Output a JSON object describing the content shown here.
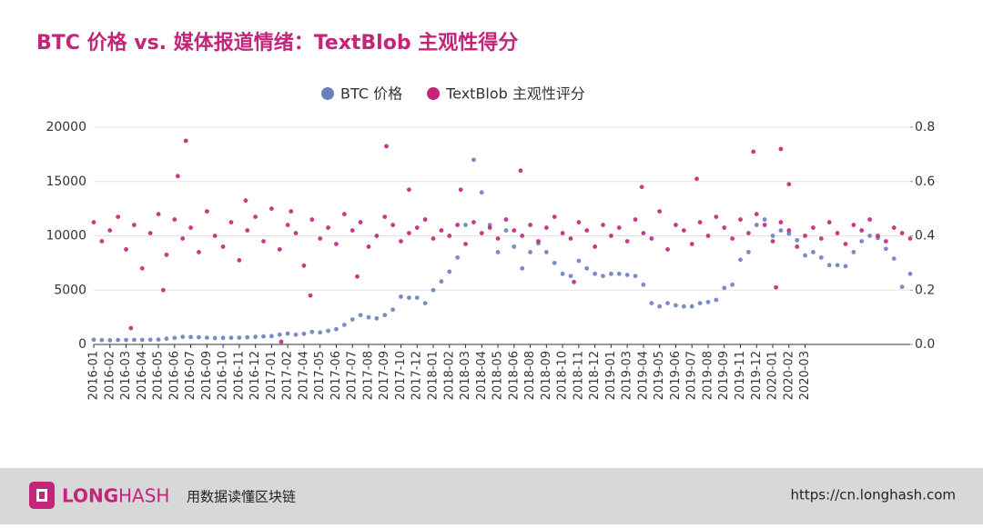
{
  "chart_data": {
    "type": "scatter",
    "title": "BTC 价格 vs. 媒体报道情绪：TextBlob 主观性得分",
    "xlim": [
      0,
      50.5
    ],
    "xticks": [
      {
        "value": 0,
        "label": "2016-01"
      },
      {
        "value": 1,
        "label": "2016-02"
      },
      {
        "value": 2,
        "label": "2016-03"
      },
      {
        "value": 3,
        "label": "2016-04"
      },
      {
        "value": 4,
        "label": "2016-05"
      },
      {
        "value": 5,
        "label": "2016-06"
      },
      {
        "value": 6,
        "label": "2016-07"
      },
      {
        "value": 7,
        "label": "2016-09"
      },
      {
        "value": 8,
        "label": "2016-10"
      },
      {
        "value": 9,
        "label": "2016-11"
      },
      {
        "value": 10,
        "label": "2016-12"
      },
      {
        "value": 11,
        "label": "2017-01"
      },
      {
        "value": 12,
        "label": "2017-02"
      },
      {
        "value": 13,
        "label": "2017-04"
      },
      {
        "value": 14,
        "label": "2017-05"
      },
      {
        "value": 15,
        "label": "2017-06"
      },
      {
        "value": 16,
        "label": "2017-07"
      },
      {
        "value": 17,
        "label": "2017-08"
      },
      {
        "value": 18,
        "label": "2017-09"
      },
      {
        "value": 19,
        "label": "2017-10"
      },
      {
        "value": 20,
        "label": "2017-12"
      },
      {
        "value": 21,
        "label": "2018-01"
      },
      {
        "value": 22,
        "label": "2018-02"
      },
      {
        "value": 23,
        "label": "2018-03"
      },
      {
        "value": 24,
        "label": "2018-04"
      },
      {
        "value": 25,
        "label": "2018-05"
      },
      {
        "value": 26,
        "label": "2018-06"
      },
      {
        "value": 27,
        "label": "2018-08"
      },
      {
        "value": 28,
        "label": "2018-09"
      },
      {
        "value": 29,
        "label": "2018-10"
      },
      {
        "value": 30,
        "label": "2018-11"
      },
      {
        "value": 31,
        "label": "2018-12"
      },
      {
        "value": 32,
        "label": "2019-01"
      },
      {
        "value": 33,
        "label": "2019-03"
      },
      {
        "value": 34,
        "label": "2019-04"
      },
      {
        "value": 35,
        "label": "2019-05"
      },
      {
        "value": 36,
        "label": "2019-06"
      },
      {
        "value": 37,
        "label": "2019-07"
      },
      {
        "value": 38,
        "label": "2019-08"
      },
      {
        "value": 39,
        "label": "2019-09"
      },
      {
        "value": 40,
        "label": "2019-11"
      },
      {
        "value": 41,
        "label": "2019-12"
      },
      {
        "value": 42,
        "label": "2020-01"
      },
      {
        "value": 43,
        "label": "2020-02"
      },
      {
        "value": 44,
        "label": "2020-03"
      }
    ],
    "ylim": [
      0,
      20000
    ],
    "yticks": [
      0,
      5000,
      10000,
      15000,
      20000
    ],
    "y2lim": [
      0,
      0.8
    ],
    "y2ticks": [
      {
        "value": 0,
        "label": "0.0"
      },
      0.2,
      0.4,
      0.6,
      0.8
    ],
    "series": [
      {
        "name": "BTC 价格",
        "color": "#6b7fbf",
        "x": [
          0,
          0.5,
          1,
          1.5,
          2,
          2.5,
          3,
          3.5,
          4,
          4.5,
          5,
          5.5,
          6,
          6.5,
          7,
          7.5,
          8,
          8.5,
          9,
          9.5,
          10,
          10.5,
          11,
          11.5,
          12,
          12.5,
          13,
          13.5,
          14,
          14.5,
          15,
          15.5,
          16,
          16.5,
          17,
          17.5,
          18,
          18.5,
          19,
          19.5,
          20,
          20.5,
          21,
          21.5,
          22,
          22.5,
          23,
          23.5,
          24,
          24.5,
          25,
          25.5,
          26,
          26.5,
          27,
          27.5,
          28,
          28.5,
          29,
          29.5,
          30,
          30.5,
          31,
          31.5,
          32,
          32.5,
          33,
          33.5,
          34,
          34.5,
          35,
          35.5,
          36,
          36.5,
          37,
          37.5,
          38,
          38.5,
          39,
          39.5,
          40,
          40.5,
          41,
          41.5,
          42,
          42.5,
          43,
          43.5,
          44,
          44.5,
          45,
          45.5,
          46,
          46.5,
          47,
          47.5,
          48,
          48.5,
          49,
          49.5,
          50,
          50.5
        ],
        "values": [
          430,
          400,
          380,
          410,
          415,
          420,
          420,
          430,
          450,
          530,
          600,
          700,
          680,
          660,
          620,
          580,
          600,
          610,
          620,
          650,
          700,
          740,
          760,
          900,
          1000,
          900,
          980,
          1150,
          1100,
          1250,
          1400,
          1800,
          2300,
          2700,
          2500,
          2400,
          2700,
          3200,
          4400,
          4300,
          4300,
          3800,
          5000,
          5800,
          6700,
          8000,
          11000,
          17000,
          14000,
          11000,
          8500,
          10500,
          9000,
          7000,
          8500,
          9300,
          8500,
          7500,
          6500,
          6300,
          7700,
          7000,
          6500,
          6300,
          6500,
          6500,
          6400,
          6300,
          5500,
          3800,
          3500,
          3800,
          3600,
          3500,
          3500,
          3800,
          3900,
          4100,
          5200,
          5500,
          7800,
          8500,
          11000,
          11500,
          10000,
          10500,
          10200,
          9600,
          8200,
          8500,
          8000,
          7300,
          7300,
          7200,
          8500,
          9500,
          10000,
          9800,
          8800,
          7900,
          5300,
          6500
        ]
      },
      {
        "name": "TextBlob 主观性评分",
        "color": "#c2257a",
        "axis": "y2",
        "x": [
          0,
          0.5,
          1,
          1.5,
          2,
          2.5,
          3,
          3.5,
          4,
          4.5,
          5,
          5.5,
          6,
          6.5,
          7,
          7.5,
          8,
          8.5,
          9,
          9.5,
          10,
          10.5,
          11,
          11.5,
          12,
          12.5,
          13,
          13.5,
          14,
          14.5,
          15,
          15.5,
          16,
          16.5,
          17,
          17.5,
          18,
          18.5,
          19,
          19.5,
          20,
          20.5,
          21,
          21.5,
          22,
          22.5,
          23,
          23.5,
          24,
          24.5,
          25,
          25.5,
          26,
          26.5,
          27,
          27.5,
          28,
          28.5,
          29,
          29.5,
          30,
          30.5,
          31,
          31.5,
          32,
          32.5,
          33,
          33.5,
          34,
          34.5,
          35,
          35.5,
          36,
          36.5,
          37,
          37.5,
          38,
          38.5,
          39,
          39.5,
          40,
          40.5,
          41,
          41.5,
          42,
          42.5,
          43,
          43.5,
          44,
          44.5,
          45,
          45.5,
          46,
          46.5,
          47,
          47.5,
          48,
          48.5,
          49,
          49.5,
          50,
          50.5,
          5.7,
          5.2,
          18.1,
          26.4,
          40.8,
          42.5,
          43,
          37.3,
          2.3,
          11.6,
          4.3,
          13.4,
          42.2,
          29.7,
          19.5,
          9.4,
          22.7,
          16.3,
          12.2,
          33.9
        ],
        "values": [
          0.45,
          0.38,
          0.42,
          0.47,
          0.35,
          0.44,
          0.28,
          0.41,
          0.48,
          0.33,
          0.46,
          0.39,
          0.43,
          0.34,
          0.49,
          0.4,
          0.36,
          0.45,
          0.31,
          0.42,
          0.47,
          0.38,
          0.5,
          0.35,
          0.44,
          0.41,
          0.29,
          0.46,
          0.39,
          0.43,
          0.37,
          0.48,
          0.42,
          0.45,
          0.36,
          0.4,
          0.47,
          0.44,
          0.38,
          0.41,
          0.43,
          0.46,
          0.39,
          0.42,
          0.4,
          0.44,
          0.37,
          0.45,
          0.41,
          0.43,
          0.39,
          0.46,
          0.42,
          0.4,
          0.44,
          0.38,
          0.43,
          0.47,
          0.41,
          0.39,
          0.45,
          0.42,
          0.36,
          0.44,
          0.4,
          0.43,
          0.38,
          0.46,
          0.41,
          0.39,
          0.49,
          0.35,
          0.44,
          0.42,
          0.37,
          0.45,
          0.4,
          0.47,
          0.43,
          0.39,
          0.46,
          0.41,
          0.48,
          0.44,
          0.38,
          0.45,
          0.42,
          0.36,
          0.4,
          0.43,
          0.39,
          0.45,
          0.41,
          0.37,
          0.44,
          0.42,
          0.46,
          0.4,
          0.38,
          0.43,
          0.41,
          0.39,
          0.75,
          0.62,
          0.73,
          0.64,
          0.71,
          0.72,
          0.59,
          0.61,
          0.06,
          0.01,
          0.2,
          0.18,
          0.21,
          0.23,
          0.57,
          0.53,
          0.57,
          0.25,
          0.49,
          0.58
        ]
      }
    ],
    "grid": true
  },
  "footer": {
    "brand_left": "LONG",
    "brand_right": "HASH",
    "tagline": "用数据读懂区块链",
    "url": "https://cn.longhash.com"
  }
}
